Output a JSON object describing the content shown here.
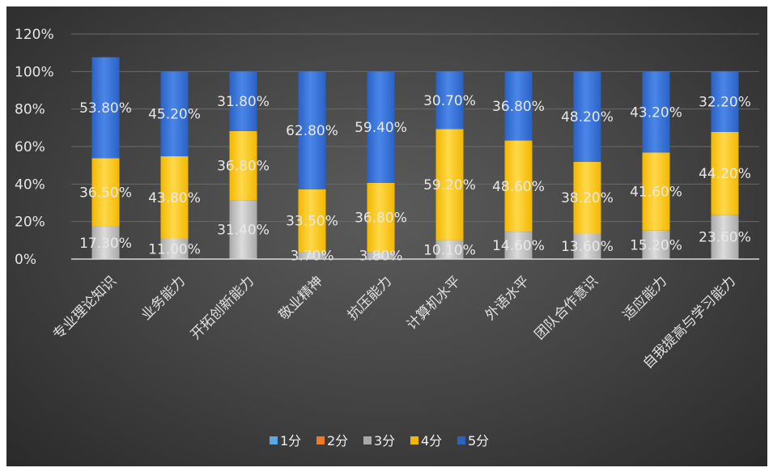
{
  "chart_data": {
    "type": "bar",
    "stacked": true,
    "categories": [
      "专业理论知识",
      "业务能力",
      "开拓创新能力",
      "敬业精神",
      "抗压能力",
      "计算机水平",
      "外语水平",
      "团队合作意识",
      "适应能力",
      "自我提高与学习能力"
    ],
    "series": [
      {
        "name": "1分",
        "color": "#5aa7e6",
        "values": [
          0,
          0,
          0,
          0,
          0,
          0,
          0,
          0,
          0,
          0
        ],
        "labels": [
          "",
          "",
          "",
          "",
          "",
          "",
          "",
          "",
          "",
          ""
        ]
      },
      {
        "name": "2分",
        "color": "#ee7a2a",
        "values": [
          0,
          0,
          0,
          0,
          0,
          0,
          0,
          0,
          0,
          0
        ],
        "labels": [
          "",
          "",
          "",
          "",
          "",
          "",
          "",
          "",
          "",
          ""
        ]
      },
      {
        "name": "3分",
        "color": "#a9a9a9",
        "values": [
          17.3,
          11.0,
          31.4,
          3.7,
          3.8,
          10.1,
          14.6,
          13.6,
          15.2,
          23.6
        ],
        "labels": [
          "17.30%",
          "11.00%",
          "31.40%",
          "3.70%",
          "3.80%",
          "10.10%",
          "14.60%",
          "13.60%",
          "15.20%",
          "23.60%"
        ]
      },
      {
        "name": "4分",
        "color": "#f2b800",
        "values": [
          36.5,
          43.8,
          36.8,
          33.5,
          36.8,
          59.2,
          48.6,
          38.2,
          41.6,
          44.2
        ],
        "labels": [
          "36.50%",
          "43.80%",
          "36.80%",
          "33.50%",
          "36.80%",
          "59.20%",
          "48.60%",
          "38.20%",
          "41.60%",
          "44.20%"
        ]
      },
      {
        "name": "5分",
        "color": "#2a62c4",
        "values": [
          53.8,
          45.2,
          31.8,
          62.8,
          59.4,
          30.7,
          36.8,
          48.2,
          43.2,
          32.2
        ],
        "labels": [
          "53.80%",
          "45.20%",
          "31.80%",
          "62.80%",
          "59.40%",
          "30.70%",
          "36.80%",
          "48.20%",
          "43.20%",
          "32.20%"
        ]
      }
    ],
    "display_cap": 100,
    "yticks": [
      "0%",
      "20%",
      "40%",
      "60%",
      "80%",
      "100%",
      "120%"
    ],
    "ylim": [
      0,
      120
    ],
    "grid": true,
    "legend": "bottom",
    "title": "",
    "xlabel": "",
    "ylabel": ""
  }
}
